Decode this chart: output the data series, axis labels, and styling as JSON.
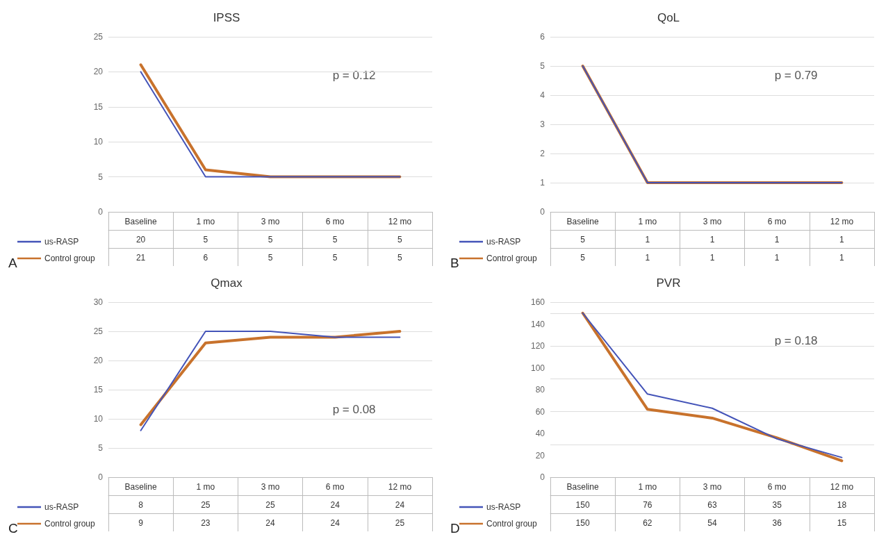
{
  "chart_data": [
    {
      "type": "line",
      "title": "IPSS",
      "categories": [
        "Baseline",
        "1 mo",
        "3 mo",
        "6 mo",
        "12 mo"
      ],
      "series": [
        {
          "name": "us-RASP",
          "color": "#4353b8",
          "values": [
            20,
            5,
            5,
            5,
            5
          ]
        },
        {
          "name": "Control group",
          "color": "#c8722c",
          "values": [
            21,
            6,
            5,
            5,
            5
          ]
        }
      ],
      "ylim": [
        0,
        25
      ],
      "yticks": [
        0,
        5,
        10,
        15,
        20,
        25
      ],
      "grid": "y",
      "legend": "left",
      "marker": "none",
      "line_style": "solid",
      "data_labels": true,
      "annotations": [
        "p = 0.12",
        "A"
      ]
    },
    {
      "type": "line",
      "title": "QoL",
      "categories": [
        "Baseline",
        "1 mo",
        "3 mo",
        "6 mo",
        "12 mo"
      ],
      "series": [
        {
          "name": "us-RASP",
          "color": "#4353b8",
          "values": [
            5,
            1,
            1,
            1,
            1
          ]
        },
        {
          "name": "Control group",
          "color": "#c8722c",
          "values": [
            5,
            1,
            1,
            1,
            1
          ]
        }
      ],
      "ylim": [
        0,
        6
      ],
      "yticks": [
        0,
        1,
        2,
        3,
        4,
        5,
        6
      ],
      "grid": "y",
      "legend": "left",
      "marker": "none",
      "line_style": "solid",
      "data_labels": true,
      "annotations": [
        "p = 0.79",
        "B"
      ]
    },
    {
      "type": "line",
      "title": "Qmax",
      "categories": [
        "Baseline",
        "1 mo",
        "3 mo",
        "6 mo",
        "12 mo"
      ],
      "series": [
        {
          "name": "us-RASP",
          "color": "#4353b8",
          "values": [
            8,
            25,
            25,
            24,
            24
          ]
        },
        {
          "name": "Control group",
          "color": "#c8722c",
          "values": [
            9,
            23,
            24,
            24,
            25
          ]
        }
      ],
      "ylim": [
        0,
        30
      ],
      "yticks": [
        0,
        5,
        10,
        15,
        20,
        25,
        30
      ],
      "grid": "y",
      "legend": "left",
      "marker": "none",
      "line_style": "solid",
      "data_labels": true,
      "annotations": [
        "p = 0.08",
        "C"
      ]
    },
    {
      "type": "line",
      "title": "PVR",
      "categories": [
        "Baseline",
        "1 mo",
        "3 mo",
        "6 mo",
        "12 mo"
      ],
      "series": [
        {
          "name": "us-RASP",
          "color": "#4353b8",
          "values": [
            150,
            76,
            63,
            35,
            18
          ]
        },
        {
          "name": "Control group",
          "color": "#c8722c",
          "values": [
            150,
            62,
            54,
            36,
            15
          ]
        }
      ],
      "ylim": [
        0,
        160
      ],
      "yticks": [
        0,
        20,
        40,
        60,
        80,
        100,
        120,
        140,
        160
      ],
      "grid": "y",
      "legend": "left",
      "marker": "none",
      "line_style": "solid",
      "data_labels": true,
      "annotations": [
        "p = 0.18",
        "D"
      ]
    }
  ]
}
